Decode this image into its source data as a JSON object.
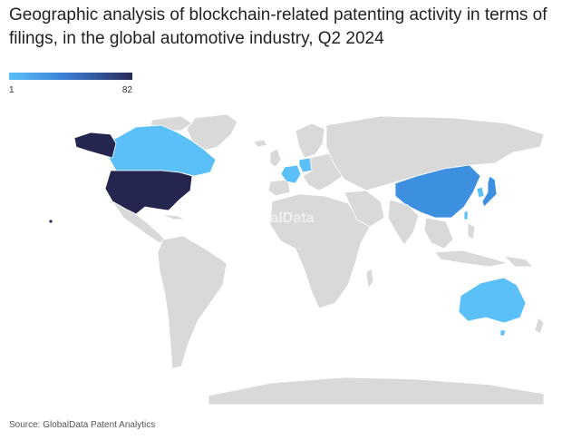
{
  "title": "Geographic analysis of blockchain-related patenting activity in terms of filings, in the global automotive industry, Q2 2024",
  "legend": {
    "min_label": "1",
    "max_label": "82",
    "min_color": "#5bc0f8",
    "max_color": "#2a2b5a"
  },
  "watermark": "GlobalData",
  "source": "Source: GlobalData Patent Analytics",
  "colors": {
    "no_data": "#d9d9d9",
    "background": "#ffffff"
  },
  "highlighted_regions": [
    {
      "region": "United States",
      "color": "#25264f"
    },
    {
      "region": "Canada",
      "color": "#5bc0f8"
    },
    {
      "region": "China",
      "color": "#3d8fe0"
    },
    {
      "region": "Japan",
      "color": "#3d8fe0"
    },
    {
      "region": "Australia",
      "color": "#5bc0f8"
    },
    {
      "region": "France",
      "color": "#5bc0f8"
    },
    {
      "region": "Germany",
      "color": "#5bc0f8"
    },
    {
      "region": "South Korea",
      "color": "#5bc0f8"
    },
    {
      "region": "Taiwan",
      "color": "#5bc0f8"
    }
  ]
}
